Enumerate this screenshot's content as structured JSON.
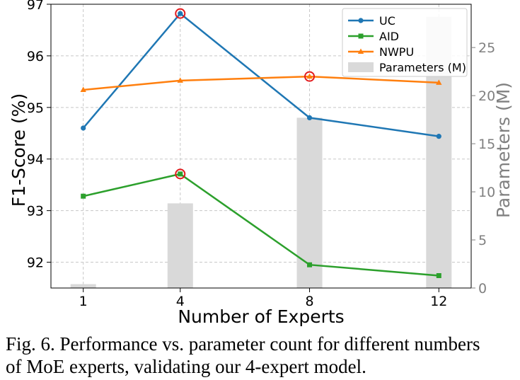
{
  "caption": {
    "line1": "Fig. 6. Performance vs. parameter count for different numbers",
    "line2": "of MoE experts, validating our 4-expert model."
  },
  "chart_data": {
    "type": "line",
    "xlabel": "Number of Experts",
    "ylabel": "F1-Score (%)",
    "y2label": "Parameters (M)",
    "categories": [
      "1",
      "4",
      "8",
      "12"
    ],
    "x": [
      1,
      4,
      8,
      12
    ],
    "xlim": [
      0.0,
      13.0
    ],
    "ylim": [
      91.5,
      97.0
    ],
    "y2lim": [
      0,
      29.5
    ],
    "yticks": [
      92,
      93,
      94,
      95,
      96,
      97
    ],
    "y2ticks": [
      0,
      5,
      10,
      15,
      20,
      25
    ],
    "grid": true,
    "legend_position": "top-right",
    "series": [
      {
        "name": "UC",
        "color": "#1f77b4",
        "marker": "circle",
        "values": [
          94.6,
          96.82,
          94.8,
          94.44
        ],
        "best_index": 1
      },
      {
        "name": "AID",
        "color": "#2ca02c",
        "marker": "square",
        "values": [
          93.28,
          93.71,
          91.95,
          91.74
        ],
        "best_index": 1
      },
      {
        "name": "NWPU",
        "color": "#ff7f0e",
        "marker": "triangle",
        "values": [
          95.34,
          95.52,
          95.6,
          95.48
        ],
        "best_index": 2
      }
    ],
    "bars": {
      "name": "Parameters (M)",
      "color": "#d9d9d9",
      "axis": "right",
      "values": [
        0.4,
        8.8,
        17.7,
        28.2
      ]
    },
    "highlight_color": "#e31a1c"
  }
}
